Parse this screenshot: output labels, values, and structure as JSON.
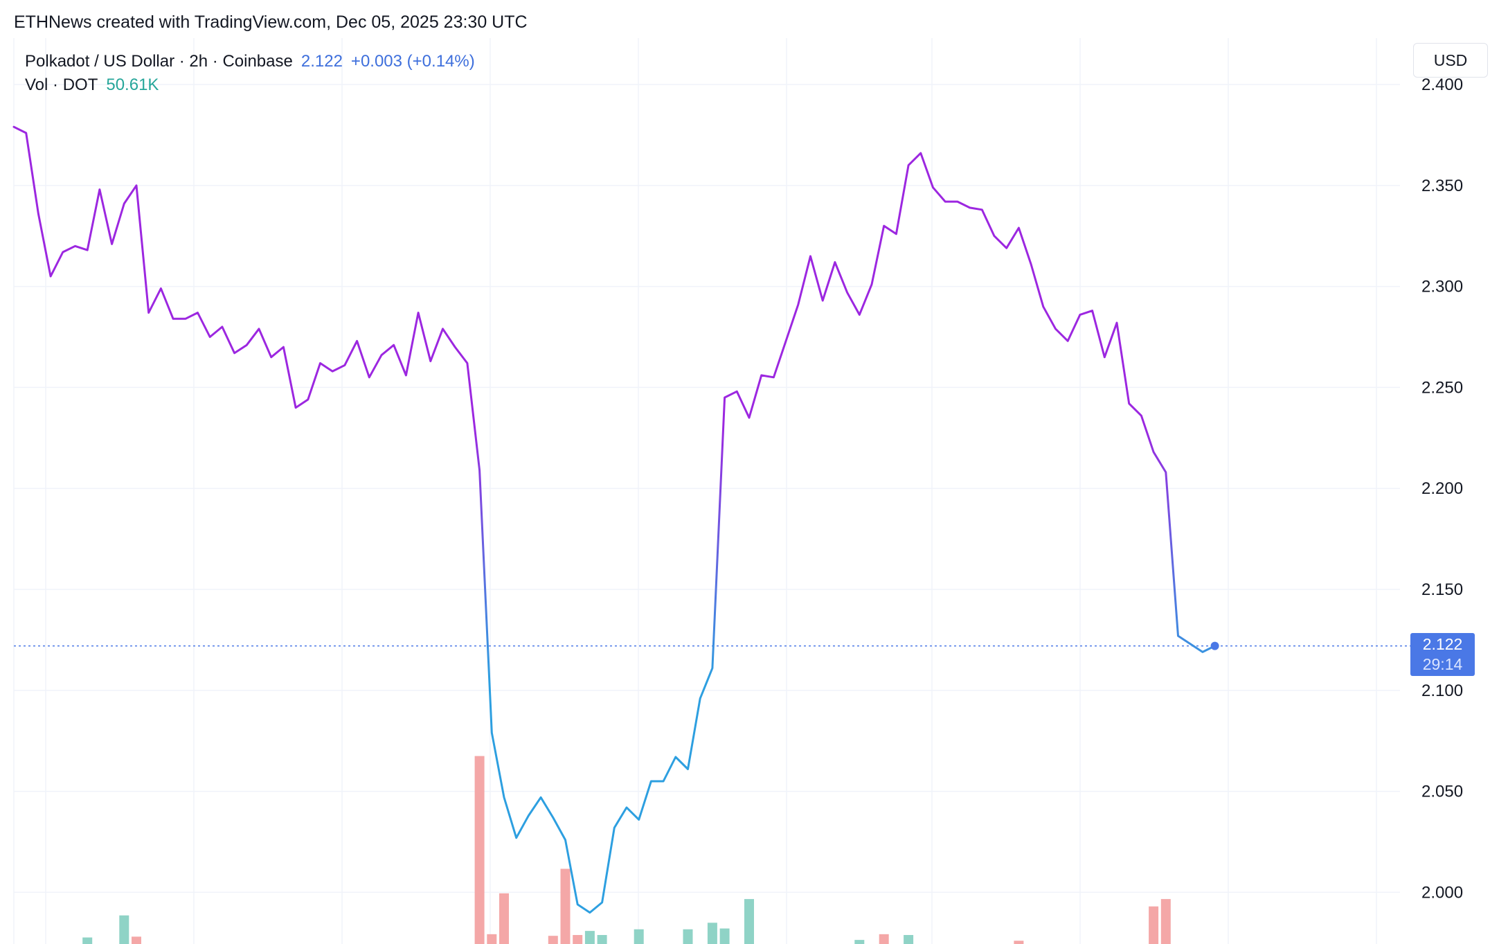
{
  "credit": "ETHNews created with TradingView.com, Dec 05, 2025 23:30 UTC",
  "legend": {
    "symbol": "Polkadot / US Dollar · 2h · Coinbase",
    "last": "2.122",
    "change": "+0.003 (+0.14%)",
    "vol_label": "Vol · DOT",
    "vol_value": "50.61K"
  },
  "currency_button": "USD",
  "price_tag": {
    "price": "2.122",
    "countdown": "29:14"
  },
  "colors": {
    "line_start": "#9c27e0",
    "line_mid": "#2d9fe0",
    "line_end": "#4a78e6",
    "vol_up": "#8fd3c6",
    "vol_down": "#f4a7a7",
    "grid": "#f0f3fa",
    "price_tag": "#4a78e6"
  },
  "chart_data": {
    "type": "line",
    "title": "",
    "xlabel": "",
    "ylabel": "",
    "ylim": [
      1.974,
      2.423
    ],
    "y_ticks": [
      "2.400",
      "2.350",
      "2.300",
      "2.250",
      "2.200",
      "2.150",
      "2.100",
      "2.050",
      "2.000"
    ],
    "last_price": 2.122,
    "price": [
      2.379,
      2.376,
      2.336,
      2.305,
      2.317,
      2.32,
      2.318,
      2.348,
      2.321,
      2.341,
      2.35,
      2.287,
      2.299,
      2.284,
      2.284,
      2.287,
      2.275,
      2.28,
      2.267,
      2.271,
      2.279,
      2.265,
      2.27,
      2.24,
      2.244,
      2.262,
      2.258,
      2.261,
      2.273,
      2.255,
      2.266,
      2.271,
      2.256,
      2.287,
      2.263,
      2.279,
      2.27,
      2.262,
      2.209,
      2.079,
      2.047,
      2.027,
      2.038,
      2.047,
      2.037,
      2.026,
      1.994,
      1.99,
      1.995,
      2.032,
      2.042,
      2.036,
      2.055,
      2.055,
      2.067,
      2.061,
      2.096,
      2.111,
      2.245,
      2.248,
      2.235,
      2.256,
      2.255,
      2.273,
      2.291,
      2.315,
      2.293,
      2.312,
      2.297,
      2.286,
      2.301,
      2.33,
      2.326,
      2.36,
      2.366,
      2.349,
      2.342,
      2.342,
      2.339,
      2.338,
      2.325,
      2.319,
      2.329,
      2.311,
      2.29,
      2.279,
      2.273,
      2.286,
      2.288,
      2.265,
      2.282,
      2.242,
      2.236,
      2.218,
      2.208,
      2.127,
      2.123,
      2.119,
      2.122
    ],
    "volume_bars": [
      {
        "i": 6,
        "v": 0.08,
        "dir": "up"
      },
      {
        "i": 9,
        "v": 0.35,
        "dir": "up"
      },
      {
        "i": 10,
        "v": 0.09,
        "dir": "down"
      },
      {
        "i": 38,
        "v": 2.3,
        "dir": "down"
      },
      {
        "i": 39,
        "v": 0.12,
        "dir": "down"
      },
      {
        "i": 40,
        "v": 0.62,
        "dir": "down"
      },
      {
        "i": 44,
        "v": 0.1,
        "dir": "down"
      },
      {
        "i": 45,
        "v": 0.92,
        "dir": "down"
      },
      {
        "i": 46,
        "v": 0.11,
        "dir": "down"
      },
      {
        "i": 47,
        "v": 0.16,
        "dir": "up"
      },
      {
        "i": 48,
        "v": 0.11,
        "dir": "up"
      },
      {
        "i": 51,
        "v": 0.18,
        "dir": "up"
      },
      {
        "i": 55,
        "v": 0.18,
        "dir": "up"
      },
      {
        "i": 57,
        "v": 0.26,
        "dir": "up"
      },
      {
        "i": 58,
        "v": 0.19,
        "dir": "up"
      },
      {
        "i": 60,
        "v": 0.55,
        "dir": "up"
      },
      {
        "i": 69,
        "v": 0.05,
        "dir": "up"
      },
      {
        "i": 71,
        "v": 0.12,
        "dir": "down"
      },
      {
        "i": 73,
        "v": 0.11,
        "dir": "up"
      },
      {
        "i": 82,
        "v": 0.04,
        "dir": "down"
      },
      {
        "i": 93,
        "v": 0.46,
        "dir": "down"
      },
      {
        "i": 94,
        "v": 0.55,
        "dir": "down"
      }
    ]
  }
}
